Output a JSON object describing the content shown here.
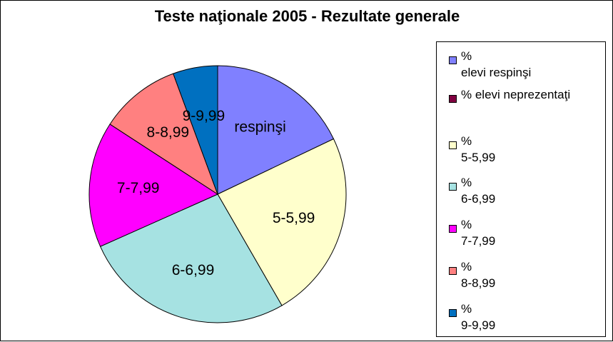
{
  "chart_data": {
    "type": "pie",
    "title": "Teste naţionale 2005 - Rezultate generale",
    "start_angle_deg": 0,
    "direction": "clockwise",
    "slices": [
      {
        "label": "respinşi",
        "value": 17.2,
        "color": "#8080FF"
      },
      {
        "label": "",
        "value": 0,
        "color": "#800040"
      },
      {
        "label": "5-5,99",
        "value": 22.8,
        "color": "#FFFFCC"
      },
      {
        "label": "6-6,99",
        "value": 25.6,
        "color": "#A6E2E2"
      },
      {
        "label": "7-7,99",
        "value": 15.2,
        "color": "#FF00FF"
      },
      {
        "label": "8-8,99",
        "value": 9.8,
        "color": "#FF8080"
      },
      {
        "label": "9-9,99",
        "value": 5.4,
        "color": "#0070C0"
      }
    ],
    "legend": {
      "placement": "right",
      "entries": [
        {
          "text": "%\nelevi respinşi",
          "color": "#8080FF"
        },
        {
          "text": "% elevi neprezentaţi",
          "color": "#800040"
        },
        {
          "text": "%\n5-5,99",
          "color": "#FFFFCC"
        },
        {
          "text": "%\n6-6,99",
          "color": "#A6E2E2"
        },
        {
          "text": "%\n7-7,99",
          "color": "#FF00FF"
        },
        {
          "text": "%\n8-8,99",
          "color": "#FF8080"
        },
        {
          "text": "%\n9-9,99",
          "color": "#0070C0"
        }
      ]
    }
  }
}
